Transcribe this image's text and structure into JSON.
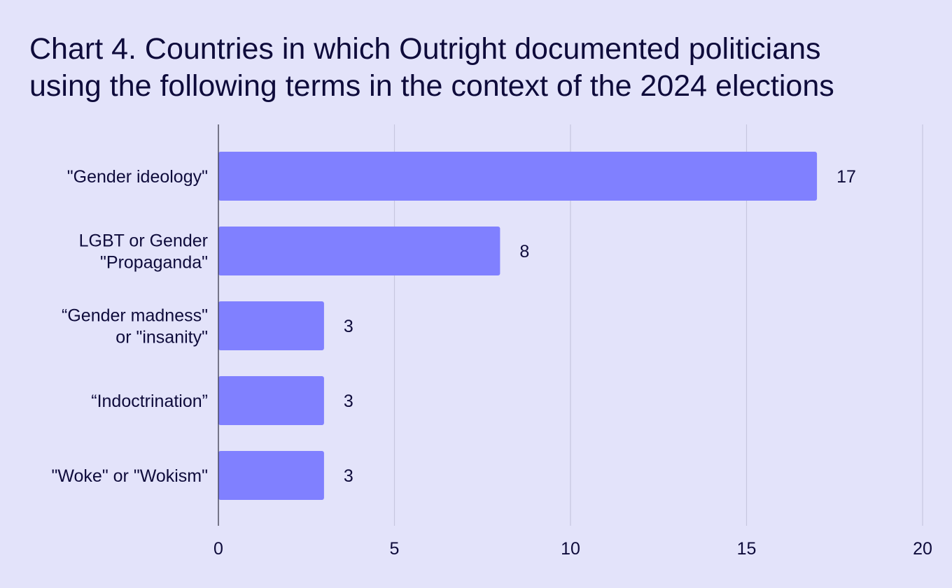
{
  "chart_data": {
    "type": "bar",
    "orientation": "horizontal",
    "title": "Chart 4. Countries in which Outright documented politicians\nusing the following terms in the context of the 2024 elections",
    "categories": [
      "\"Gender ideology\"",
      "LGBT or Gender\n\"Propaganda\"",
      "“Gender madness\"\nor \"insanity\"",
      "“Indoctrination”",
      "\"Woke\" or \"Wokism\""
    ],
    "values": [
      17,
      8,
      3,
      3,
      3
    ],
    "xlim": [
      0,
      20
    ],
    "x_ticks": [
      0,
      5,
      10,
      15,
      20
    ],
    "xlabel": "",
    "ylabel": "",
    "grid": "vertical",
    "legend": "none",
    "data_labels": true,
    "colors": {
      "bar": "#8080ff",
      "background": "#e3e3fa",
      "text": "#0e0b3b",
      "grid": "#c6c6de",
      "axis": "#3a3a4a"
    }
  }
}
